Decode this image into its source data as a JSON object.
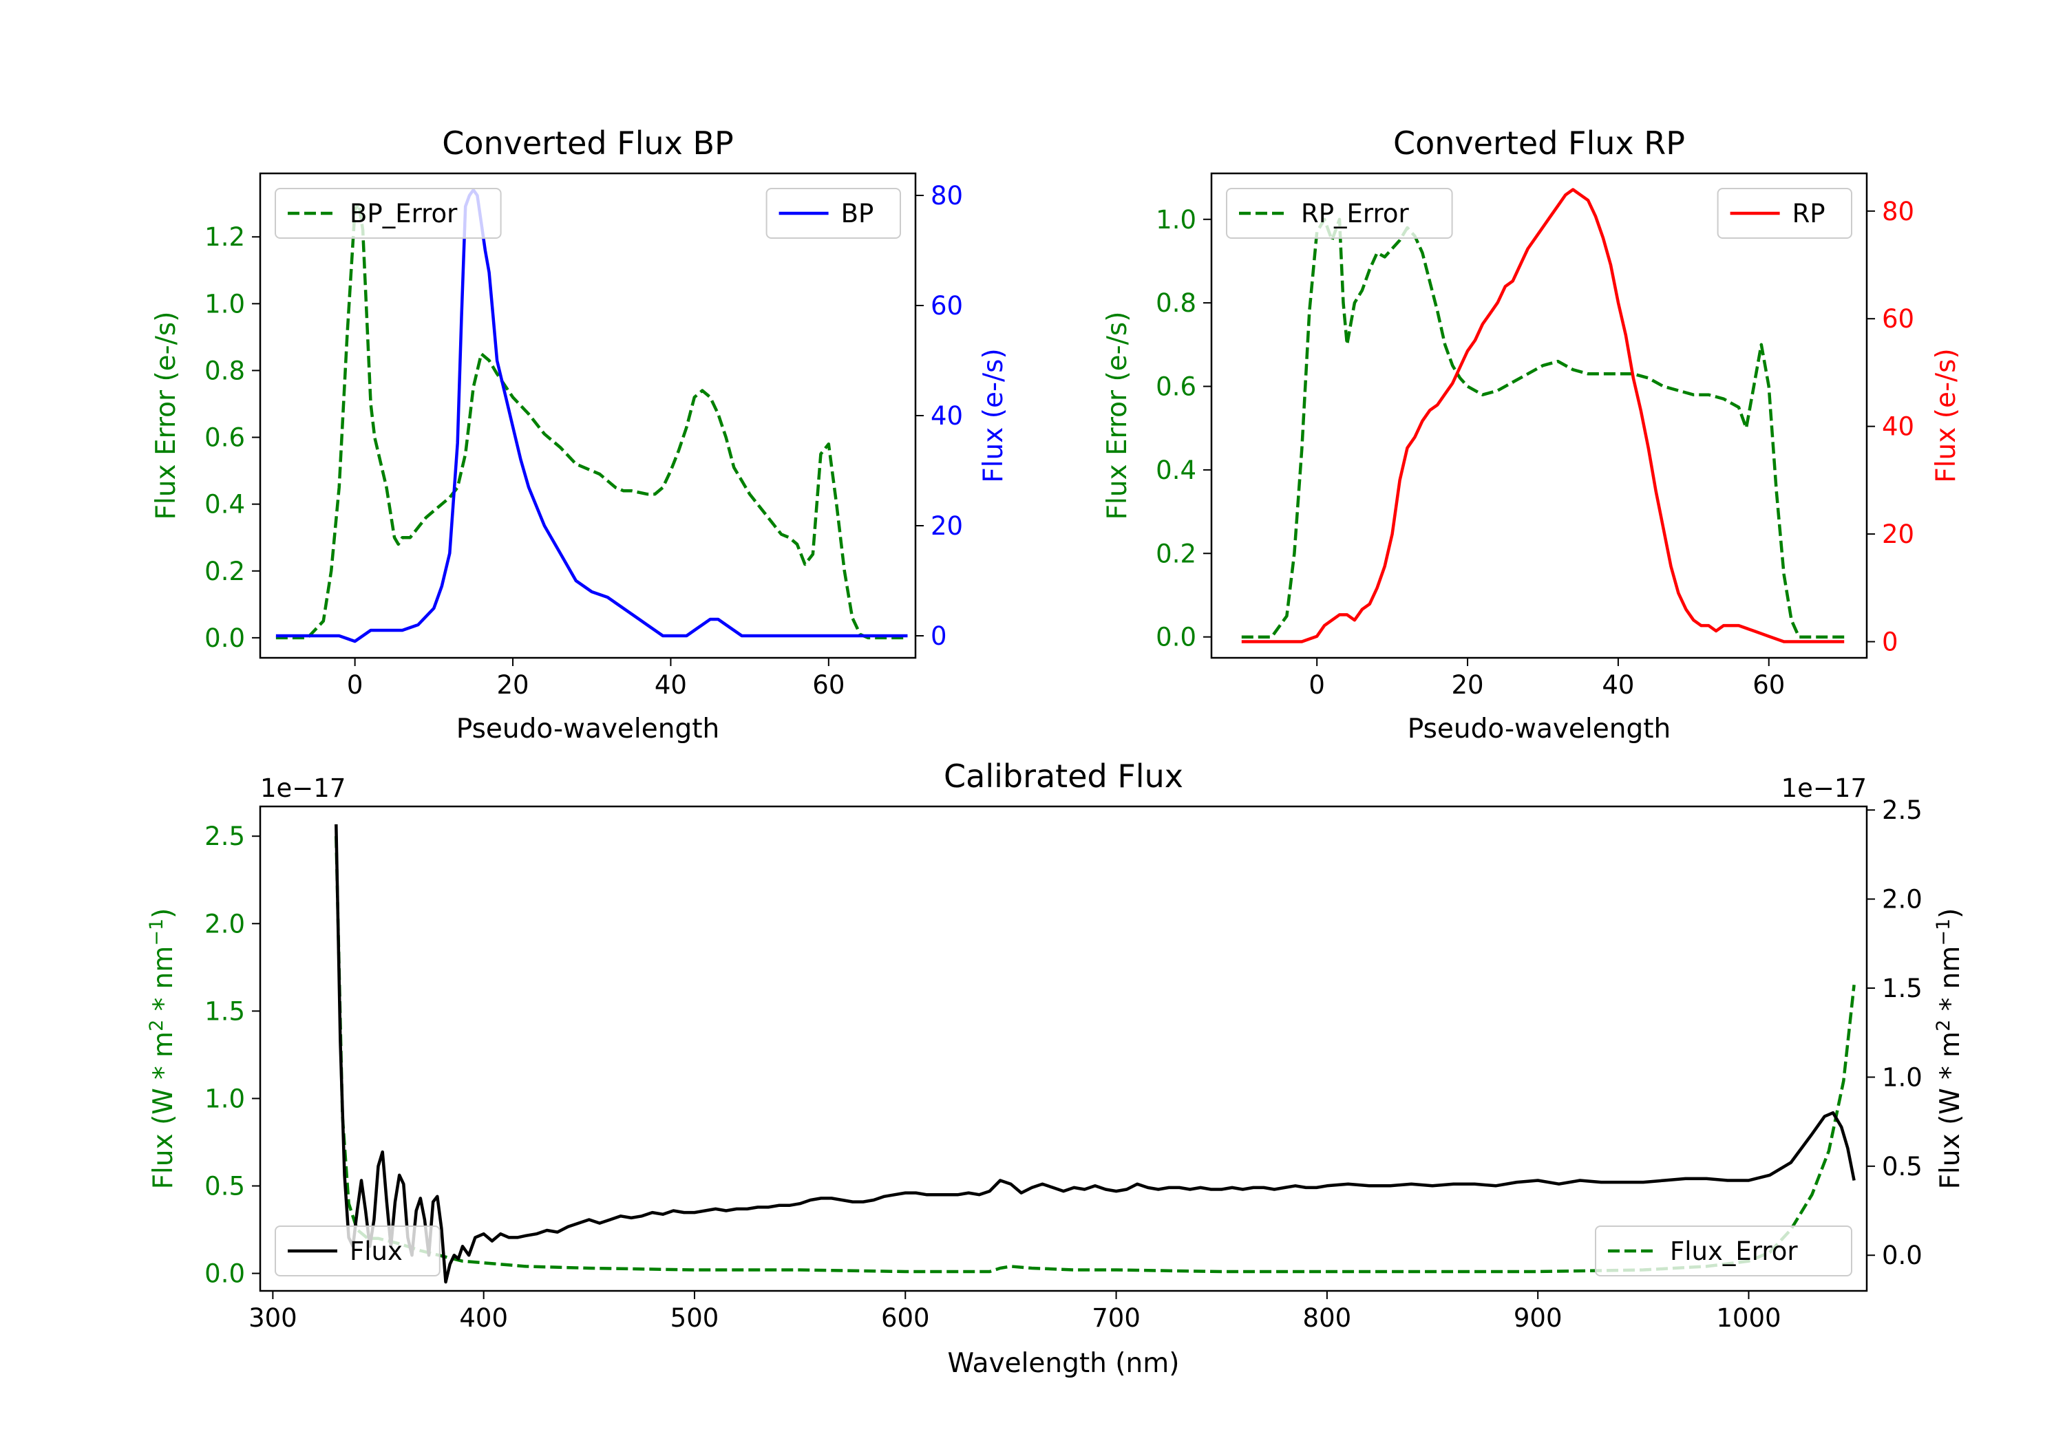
{
  "chart_data": [
    {
      "id": "bp",
      "type": "line",
      "title": "Converted Flux BP",
      "xlabel": "Pseudo-wavelength",
      "ylabel_left": "Flux Error (e-/s)",
      "ylabel_right": "Flux (e-/s)",
      "xlim": [
        -12,
        71
      ],
      "ylim_left": [
        -0.06,
        1.39
      ],
      "ylim_right": [
        -4,
        84
      ],
      "xticks": [
        0,
        20,
        40,
        60
      ],
      "yticks_left": [
        0.0,
        0.2,
        0.4,
        0.6,
        0.8,
        1.0,
        1.2
      ],
      "yticks_right": [
        0,
        20,
        40,
        60,
        80
      ],
      "series": [
        {
          "name": "BP_Error",
          "axis": "left",
          "color": "#008000",
          "dash": true,
          "legend": "top-left",
          "x": [
            -10,
            -6,
            -4,
            -3,
            -2,
            -1,
            0,
            0.5,
            1,
            2,
            2.5,
            3,
            4,
            5,
            5.5,
            6,
            7,
            8,
            9,
            10,
            11,
            12,
            13,
            14,
            15,
            16,
            17,
            18,
            20,
            22,
            24,
            26,
            28,
            30,
            31,
            33,
            34,
            35,
            37,
            38,
            39,
            40,
            41,
            42,
            43,
            44,
            45,
            46,
            47,
            48,
            49,
            50,
            51,
            52,
            53,
            54,
            55,
            56,
            57,
            58,
            59,
            60,
            61,
            62,
            63,
            64,
            65,
            66,
            68,
            70
          ],
          "y": [
            0.0,
            0.0,
            0.05,
            0.2,
            0.45,
            0.9,
            1.28,
            1.3,
            1.22,
            0.7,
            0.6,
            0.55,
            0.45,
            0.3,
            0.28,
            0.3,
            0.3,
            0.33,
            0.36,
            0.38,
            0.4,
            0.42,
            0.45,
            0.55,
            0.75,
            0.85,
            0.83,
            0.79,
            0.72,
            0.67,
            0.61,
            0.57,
            0.52,
            0.5,
            0.49,
            0.45,
            0.44,
            0.44,
            0.43,
            0.43,
            0.45,
            0.5,
            0.56,
            0.63,
            0.72,
            0.74,
            0.72,
            0.67,
            0.6,
            0.51,
            0.47,
            0.43,
            0.4,
            0.37,
            0.34,
            0.31,
            0.3,
            0.28,
            0.22,
            0.25,
            0.55,
            0.58,
            0.4,
            0.2,
            0.06,
            0.01,
            0.0,
            0.0,
            0.0,
            0.0
          ]
        },
        {
          "name": "BP",
          "axis": "right",
          "color": "#0000ff",
          "dash": false,
          "legend": "top-right",
          "x": [
            -10,
            -8,
            -6,
            -4,
            -2,
            0,
            2,
            4,
            6,
            8,
            10,
            11,
            12,
            13,
            13.5,
            14,
            14.5,
            15,
            15.5,
            16,
            16.5,
            17,
            17.5,
            18,
            19,
            20,
            21,
            22,
            24,
            26,
            28,
            30,
            32,
            33,
            34,
            35,
            36,
            37,
            38,
            39,
            40,
            41,
            42,
            43,
            44,
            45,
            46,
            47,
            48,
            49,
            50,
            52,
            54,
            56,
            58,
            60,
            62,
            64,
            66,
            68,
            70
          ],
          "y": [
            0,
            0,
            0,
            0,
            0,
            -1,
            1,
            1,
            1,
            2,
            5,
            9,
            15,
            35,
            58,
            78,
            80,
            81,
            80,
            75,
            70,
            66,
            58,
            50,
            44,
            38,
            32,
            27,
            20,
            15,
            10,
            8,
            7,
            6,
            5,
            4,
            3,
            2,
            1,
            0,
            0,
            0,
            0,
            1,
            2,
            3,
            3,
            2,
            1,
            0,
            0,
            0,
            0,
            0,
            0,
            0,
            0,
            0,
            0,
            0,
            0
          ]
        }
      ]
    },
    {
      "id": "rp",
      "type": "line",
      "title": "Converted Flux RP",
      "xlabel": "Pseudo-wavelength",
      "ylabel_left": "Flux Error (e-/s)",
      "ylabel_right": "Flux (e-/s)",
      "xlim": [
        -14,
        73
      ],
      "ylim_left": [
        -0.05,
        1.11
      ],
      "ylim_right": [
        -3,
        87
      ],
      "xticks": [
        0,
        20,
        40,
        60
      ],
      "yticks_left": [
        0.0,
        0.2,
        0.4,
        0.6,
        0.8,
        1.0
      ],
      "yticks_right": [
        0,
        20,
        40,
        60,
        80
      ],
      "series": [
        {
          "name": "RP_Error",
          "axis": "left",
          "color": "#008000",
          "dash": true,
          "legend": "top-left",
          "x": [
            -10,
            -6,
            -4,
            -3,
            -2,
            -1,
            0,
            1,
            2,
            3,
            3.5,
            4,
            4.5,
            5,
            6,
            7,
            8,
            9,
            10,
            11,
            12,
            13,
            14,
            15,
            16,
            17,
            18,
            19,
            20,
            22,
            24,
            26,
            28,
            30,
            32,
            34,
            36,
            38,
            40,
            42,
            44,
            46,
            48,
            50,
            52,
            54,
            55,
            56,
            57,
            58,
            59,
            60,
            61,
            62,
            63,
            64,
            65,
            66,
            68,
            70
          ],
          "y": [
            0.0,
            0.0,
            0.05,
            0.2,
            0.45,
            0.78,
            0.97,
            1.0,
            0.95,
            1.0,
            0.8,
            0.7,
            0.75,
            0.8,
            0.83,
            0.88,
            0.92,
            0.91,
            0.93,
            0.95,
            0.98,
            0.96,
            0.92,
            0.85,
            0.78,
            0.7,
            0.65,
            0.62,
            0.6,
            0.58,
            0.59,
            0.61,
            0.63,
            0.65,
            0.66,
            0.64,
            0.63,
            0.63,
            0.63,
            0.63,
            0.62,
            0.6,
            0.59,
            0.58,
            0.58,
            0.57,
            0.56,
            0.55,
            0.5,
            0.6,
            0.7,
            0.6,
            0.35,
            0.15,
            0.04,
            0.0,
            0.0,
            0.0,
            0.0,
            0.0
          ]
        },
        {
          "name": "RP",
          "axis": "right",
          "color": "#ff0000",
          "dash": false,
          "legend": "top-right",
          "x": [
            -10,
            -6,
            -4,
            -2,
            0,
            1,
            2,
            3,
            4,
            5,
            6,
            7,
            8,
            9,
            10,
            11,
            12,
            13,
            14,
            15,
            16,
            17,
            18,
            19,
            20,
            21,
            22,
            23,
            24,
            25,
            26,
            27,
            28,
            29,
            30,
            31,
            32,
            33,
            34,
            35,
            36,
            37,
            38,
            39,
            40,
            41,
            42,
            43,
            44,
            45,
            46,
            47,
            48,
            49,
            50,
            51,
            52,
            53,
            54,
            56,
            58,
            60,
            62,
            64,
            66,
            68,
            70
          ],
          "y": [
            0,
            0,
            0,
            0,
            1,
            3,
            4,
            5,
            5,
            4,
            6,
            7,
            10,
            14,
            20,
            30,
            36,
            38,
            41,
            43,
            44,
            46,
            48,
            51,
            54,
            56,
            59,
            61,
            63,
            66,
            67,
            70,
            73,
            75,
            77,
            79,
            81,
            83,
            84,
            83,
            82,
            79,
            75,
            70,
            63,
            57,
            49,
            43,
            36,
            28,
            21,
            14,
            9,
            6,
            4,
            3,
            3,
            2,
            3,
            3,
            2,
            1,
            0,
            0,
            0,
            0,
            0
          ]
        }
      ]
    },
    {
      "id": "cal",
      "type": "line",
      "title": "Calibrated Flux",
      "xlabel": "Wavelength (nm)",
      "ylabel_left": "Flux (W * m",
      "ylabel_right": "Flux (W * m",
      "ylabel_mid": " * nm",
      "ylabel_end": ")",
      "sup_2": "2",
      "sup_minus1": "−1",
      "offset_left": "1e−17",
      "offset_right": "1e−17",
      "xlim": [
        294,
        1056
      ],
      "ylim_left": [
        -0.1,
        2.67
      ],
      "ylim_right": [
        -0.2,
        2.52
      ],
      "xticks": [
        300,
        400,
        500,
        600,
        700,
        800,
        900,
        1000
      ],
      "yticks_left": [
        0.0,
        0.5,
        1.0,
        1.5,
        2.0,
        2.5
      ],
      "yticks_right": [
        0.0,
        0.5,
        1.0,
        1.5,
        2.0,
        2.5
      ],
      "series": [
        {
          "name": "Flux_Error",
          "axis": "left",
          "color": "#008000",
          "dash": true,
          "legend": "bottom-right",
          "x": [
            330,
            333,
            336,
            340,
            345,
            350,
            360,
            370,
            380,
            390,
            400,
            420,
            450,
            500,
            550,
            600,
            630,
            640,
            645,
            650,
            660,
            680,
            700,
            750,
            800,
            850,
            900,
            950,
            980,
            1000,
            1010,
            1020,
            1030,
            1038,
            1045,
            1050
          ],
          "y": [
            2.5,
            0.9,
            0.4,
            0.25,
            0.2,
            0.2,
            0.17,
            0.13,
            0.1,
            0.07,
            0.06,
            0.04,
            0.03,
            0.02,
            0.02,
            0.01,
            0.01,
            0.01,
            0.03,
            0.04,
            0.03,
            0.02,
            0.02,
            0.01,
            0.01,
            0.01,
            0.01,
            0.02,
            0.04,
            0.07,
            0.12,
            0.25,
            0.45,
            0.7,
            1.1,
            1.65
          ]
        },
        {
          "name": "Flux",
          "axis": "right",
          "color": "#000000",
          "dash": false,
          "legend": "bottom-left",
          "x": [
            330,
            332,
            334,
            336,
            338,
            340,
            342,
            344,
            346,
            348,
            350,
            352,
            354,
            356,
            358,
            360,
            362,
            364,
            366,
            368,
            370,
            372,
            374,
            376,
            378,
            380,
            382,
            384,
            386,
            388,
            390,
            393,
            396,
            400,
            404,
            408,
            412,
            416,
            420,
            425,
            430,
            435,
            440,
            445,
            450,
            455,
            460,
            465,
            470,
            475,
            480,
            485,
            490,
            495,
            500,
            505,
            510,
            515,
            520,
            525,
            530,
            535,
            540,
            545,
            550,
            555,
            560,
            565,
            570,
            575,
            580,
            585,
            590,
            595,
            600,
            605,
            610,
            615,
            620,
            625,
            630,
            635,
            640,
            645,
            650,
            655,
            660,
            665,
            670,
            675,
            680,
            685,
            690,
            695,
            700,
            705,
            710,
            715,
            720,
            725,
            730,
            735,
            740,
            745,
            750,
            755,
            760,
            765,
            770,
            775,
            780,
            785,
            790,
            795,
            800,
            810,
            820,
            830,
            840,
            850,
            860,
            870,
            880,
            890,
            900,
            910,
            920,
            930,
            940,
            950,
            960,
            970,
            980,
            990,
            1000,
            1010,
            1020,
            1030,
            1036,
            1040,
            1044,
            1047,
            1050
          ],
          "y": [
            2.42,
            1.2,
            0.45,
            0.1,
            0.05,
            0.25,
            0.42,
            0.25,
            0.05,
            0.2,
            0.5,
            0.58,
            0.3,
            0.05,
            0.3,
            0.45,
            0.4,
            0.1,
            0.0,
            0.25,
            0.32,
            0.2,
            0.0,
            0.3,
            0.33,
            0.15,
            -0.15,
            -0.05,
            0.0,
            -0.02,
            0.05,
            0.0,
            0.1,
            0.12,
            0.08,
            0.12,
            0.1,
            0.1,
            0.11,
            0.12,
            0.14,
            0.13,
            0.16,
            0.18,
            0.2,
            0.18,
            0.2,
            0.22,
            0.21,
            0.22,
            0.24,
            0.23,
            0.25,
            0.24,
            0.24,
            0.25,
            0.26,
            0.25,
            0.26,
            0.26,
            0.27,
            0.27,
            0.28,
            0.28,
            0.29,
            0.31,
            0.32,
            0.32,
            0.31,
            0.3,
            0.3,
            0.31,
            0.33,
            0.34,
            0.35,
            0.35,
            0.34,
            0.34,
            0.34,
            0.34,
            0.35,
            0.34,
            0.36,
            0.42,
            0.4,
            0.35,
            0.38,
            0.4,
            0.38,
            0.36,
            0.38,
            0.37,
            0.39,
            0.37,
            0.36,
            0.37,
            0.4,
            0.38,
            0.37,
            0.38,
            0.38,
            0.37,
            0.38,
            0.37,
            0.37,
            0.38,
            0.37,
            0.38,
            0.38,
            0.37,
            0.38,
            0.39,
            0.38,
            0.38,
            0.39,
            0.4,
            0.39,
            0.39,
            0.4,
            0.39,
            0.4,
            0.4,
            0.39,
            0.41,
            0.42,
            0.4,
            0.42,
            0.41,
            0.41,
            0.41,
            0.42,
            0.43,
            0.43,
            0.42,
            0.42,
            0.45,
            0.52,
            0.68,
            0.78,
            0.8,
            0.72,
            0.6,
            0.42
          ]
        }
      ]
    }
  ]
}
